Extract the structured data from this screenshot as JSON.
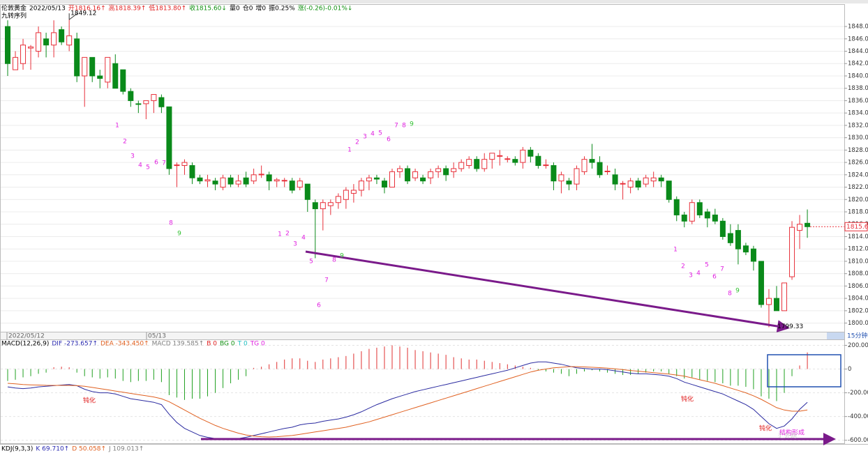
{
  "chart_data": [
    {
      "type": "candlestick",
      "header": [
        {
          "text": "伦敦黄金",
          "color": "#000000"
        },
        {
          "text": "2022/05/13",
          "color": "#000000"
        },
        {
          "text": "开1816.16↑",
          "color": "#e02020"
        },
        {
          "text": "高1818.39↑",
          "color": "#e02020"
        },
        {
          "text": "低1813.80↑",
          "color": "#e02020"
        },
        {
          "text": "收1815.60↓",
          "color": "#109010"
        },
        {
          "text": "量0",
          "color": "#000000"
        },
        {
          "text": "仓0",
          "color": "#000000"
        },
        {
          "text": "增0",
          "color": "#000000"
        },
        {
          "text": "振0.25%",
          "color": "#000000"
        },
        {
          "text": "涨(-0.26)-0.01%↓",
          "color": "#109010"
        }
      ],
      "subtitle": "九转序列",
      "open": [
        1848,
        1841,
        1842,
        1844.5,
        1844,
        1846,
        1845,
        1847.5,
        1845,
        1846,
        1840,
        1843,
        1840,
        1839,
        1842,
        1841,
        1837.5,
        1835.5,
        1835.5,
        1836,
        1836.5,
        1835,
        1825.5,
        1825.5,
        1825.5,
        1823.5,
        1823,
        1823,
        1822,
        1823.5,
        1822.5,
        1823.5,
        1823,
        1824,
        1824,
        1823,
        1823,
        1823,
        1822,
        1822.5,
        1819.5,
        1818.5,
        1819,
        1819.5,
        1820,
        1821,
        1821.5,
        1823,
        1823.5,
        1823,
        1822,
        1824.5,
        1825,
        1823.5,
        1823.5,
        1823.5,
        1824.5,
        1825,
        1824.5,
        1825,
        1825.5,
        1826.5,
        1825,
        1826.5,
        1827,
        1826.5,
        1826.5,
        1826,
        1828,
        1827,
        1825.5,
        1825.5,
        1823,
        1823,
        1822.5,
        1824.5,
        1826.5,
        1826,
        1824.5,
        1824,
        1822.5,
        1822,
        1823,
        1822.5,
        1823,
        1823.5,
        1823,
        1820,
        1817.5,
        1816.5,
        1819.5,
        1818,
        1817.5,
        1816.5,
        1814.5,
        1815,
        1812.5,
        1812,
        1810,
        1803,
        1804,
        1802,
        1807.5,
        1815,
        1816.16
      ],
      "high": [
        1849,
        1844,
        1846,
        1845,
        1848,
        1847,
        1849,
        1848,
        1849.12,
        1847,
        1843,
        1843,
        1841,
        1843,
        1843.5,
        1841,
        1838,
        1836,
        1836,
        1837,
        1837,
        1835,
        1826,
        1826.5,
        1826,
        1824,
        1824,
        1823.5,
        1824,
        1824,
        1824,
        1824.5,
        1825,
        1825.5,
        1824.5,
        1823.5,
        1823.5,
        1823.5,
        1823.5,
        1822.5,
        1820,
        1820,
        1820,
        1821,
        1822,
        1822.5,
        1823.5,
        1824,
        1824,
        1823.5,
        1825,
        1825.5,
        1825.5,
        1825,
        1824,
        1825,
        1825.5,
        1825.5,
        1826,
        1826.5,
        1827,
        1827,
        1827.5,
        1827.5,
        1828,
        1827,
        1827,
        1828.5,
        1828.5,
        1827.5,
        1826.5,
        1826,
        1824.5,
        1823.5,
        1825.5,
        1827,
        1829,
        1827,
        1825.5,
        1825,
        1823,
        1823.5,
        1823.5,
        1824,
        1824.5,
        1824,
        1823,
        1820.5,
        1818,
        1820,
        1820,
        1818.5,
        1818.5,
        1817,
        1816,
        1816,
        1813,
        1812.5,
        1810,
        1805.5,
        1806,
        1806.5,
        1816.5,
        1817.5,
        1818.39
      ],
      "low": [
        1840,
        1841,
        1841,
        1841,
        1843,
        1843,
        1843,
        1845,
        1844,
        1839,
        1835,
        1839,
        1838,
        1838,
        1838,
        1837,
        1835,
        1834,
        1833,
        1834,
        1834,
        1824,
        1822,
        1824,
        1822.5,
        1822.5,
        1822,
        1821.5,
        1821.5,
        1822,
        1822,
        1822,
        1822.5,
        1823.5,
        1821.5,
        1822,
        1822,
        1821,
        1821.5,
        1818,
        1810.5,
        1815,
        1817.5,
        1818.5,
        1818.5,
        1819.5,
        1820.5,
        1821.5,
        1822.5,
        1821,
        1822,
        1823.5,
        1822.5,
        1823,
        1822.5,
        1822.5,
        1823.5,
        1823,
        1823.5,
        1824.5,
        1825,
        1824.5,
        1824.5,
        1825,
        1825.5,
        1826,
        1825.5,
        1825,
        1826,
        1825,
        1825,
        1821.5,
        1821,
        1821.5,
        1821.5,
        1824,
        1825,
        1823.5,
        1824,
        1821.5,
        1820,
        1821,
        1821.5,
        1822,
        1822,
        1822,
        1819.5,
        1816.5,
        1815.5,
        1816,
        1817,
        1815.5,
        1816,
        1813.5,
        1812.5,
        1809.5,
        1811,
        1808.5,
        1802.5,
        1799.33,
        1802,
        1802,
        1807,
        1812,
        1813.8
      ],
      "close": [
        1842,
        1843,
        1845,
        1844.7,
        1847,
        1845,
        1847,
        1845.5,
        1846.5,
        1840,
        1843,
        1840,
        1839.6,
        1843,
        1838,
        1837.5,
        1836,
        1835.4,
        1836,
        1837,
        1835,
        1825,
        1825.6,
        1826,
        1823.5,
        1823,
        1823.2,
        1822.5,
        1823.5,
        1822.5,
        1823,
        1822.5,
        1824,
        1824.1,
        1823,
        1823.2,
        1823.1,
        1821.5,
        1823,
        1820,
        1818.5,
        1819.5,
        1819.5,
        1820.5,
        1821.5,
        1821.5,
        1823,
        1823.5,
        1823.3,
        1822,
        1824.5,
        1825,
        1823,
        1824.5,
        1823,
        1824.5,
        1825,
        1824,
        1825,
        1826,
        1826.5,
        1825,
        1826.5,
        1827.5,
        1827.1,
        1826.6,
        1826,
        1828,
        1827,
        1825.5,
        1825.6,
        1823,
        1824,
        1822.5,
        1825,
        1826.5,
        1826,
        1824,
        1824.6,
        1822.5,
        1822.6,
        1823,
        1822,
        1823.5,
        1823.5,
        1823,
        1820,
        1817.5,
        1816.5,
        1819.5,
        1817.5,
        1817,
        1816.5,
        1814,
        1813,
        1812,
        1811.5,
        1810,
        1803,
        1804,
        1802,
        1806.5,
        1815.5,
        1816,
        1815.6
      ],
      "up_color": "#e8303a",
      "down_color": "#0a8a1a",
      "ylim": [
        1798.6,
        1851.5
      ],
      "yticks": [
        {
          "value": 1800,
          "label": "1800.00"
        },
        {
          "value": 1802,
          "label": "1802.00"
        },
        {
          "value": 1804,
          "label": "1804.00"
        },
        {
          "value": 1806,
          "label": "1806.00"
        },
        {
          "value": 1808,
          "label": "1808.00"
        },
        {
          "value": 1810,
          "label": "1810.00"
        },
        {
          "value": 1812,
          "label": "1812.00"
        },
        {
          "value": 1814,
          "label": "1814.00"
        },
        {
          "value": 1816,
          "label": "1816.00"
        },
        {
          "value": 1818,
          "label": "1818.00"
        },
        {
          "value": 1820,
          "label": "1820.00"
        },
        {
          "value": 1822,
          "label": "1822.00"
        },
        {
          "value": 1824,
          "label": "1824.00"
        },
        {
          "value": 1826,
          "label": "1826.00"
        },
        {
          "value": 1828,
          "label": "1828.00"
        },
        {
          "value": 1830,
          "label": "1830.00"
        },
        {
          "value": 1832,
          "label": "1832.00"
        },
        {
          "value": 1834,
          "label": "1834.00"
        },
        {
          "value": 1836,
          "label": "1836.00"
        },
        {
          "value": 1838,
          "label": "1838.00"
        },
        {
          "value": 1840,
          "label": "1840.00"
        },
        {
          "value": 1842,
          "label": "1842.00"
        },
        {
          "value": 1844,
          "label": "1844.00"
        },
        {
          "value": 1846,
          "label": "1846.00"
        },
        {
          "value": 1848,
          "label": "1848.00"
        }
      ],
      "grid": true,
      "date_labels": [
        "2022/05/12",
        "05/13"
      ],
      "timeframe": "15分钟",
      "high_label": "1849.12",
      "low_label": "1799.33",
      "last_price_label": "1815.60",
      "td_sequence": [
        "1",
        "2",
        "3",
        "4",
        "5",
        "6",
        "7",
        "8",
        "9",
        "1",
        "2",
        "3",
        "4",
        "5",
        "6",
        "7",
        "8",
        "9",
        "1",
        "2",
        "3",
        "4",
        "5",
        "6",
        "7",
        "8",
        "9",
        "1",
        "2",
        "3",
        "4",
        "5",
        "6",
        "7",
        "8",
        "9"
      ],
      "td_colors": {
        "count": "#e020e0",
        "nine": "#30c030"
      }
    },
    {
      "type": "macd",
      "header": [
        {
          "text": "MACD(12,26,9)",
          "color": "#000000"
        },
        {
          "text": "DIF -273.657↑",
          "color": "#2a2ab0"
        },
        {
          "text": "DEA -343.450↑",
          "color": "#e06020"
        },
        {
          "text": "MACD 139.585↑",
          "color": "#808080"
        },
        {
          "text": "B 0",
          "color": "#e02020"
        },
        {
          "text": "BG 0",
          "color": "#109010"
        },
        {
          "text": "T 0",
          "color": "#20c0c0"
        },
        {
          "text": "TG 0",
          "color": "#e020e0"
        }
      ],
      "series": [
        {
          "color": "#2a2aa0",
          "values": [
            -150,
            -160,
            -165,
            -160,
            -150,
            -145,
            -140,
            -135,
            -130,
            -140,
            -170,
            -190,
            -200,
            -200,
            -210,
            -230,
            -250,
            -260,
            -270,
            -280,
            -300,
            -380,
            -450,
            -500,
            -530,
            -560,
            -575,
            -585,
            -590,
            -590,
            -585,
            -575,
            -560,
            -545,
            -530,
            -515,
            -500,
            -490,
            -470,
            -460,
            -455,
            -440,
            -430,
            -420,
            -405,
            -385,
            -360,
            -330,
            -300,
            -275,
            -250,
            -230,
            -210,
            -190,
            -175,
            -160,
            -145,
            -130,
            -115,
            -100,
            -85,
            -70,
            -55,
            -40,
            -25,
            -10,
            10,
            30,
            50,
            60,
            60,
            50,
            40,
            25,
            10,
            5,
            0,
            0,
            -5,
            -15,
            -25,
            -35,
            -40,
            -40,
            -45,
            -50,
            -60,
            -80,
            -110,
            -130,
            -150,
            -170,
            -190,
            -210,
            -240,
            -270,
            -300,
            -340,
            -400,
            -460,
            -500,
            -480,
            -420,
            -340,
            -280
          ]
        },
        {
          "color": "#e06020",
          "values": [
            -120,
            -125,
            -130,
            -133,
            -135,
            -137,
            -138,
            -138,
            -138,
            -140,
            -145,
            -155,
            -165,
            -175,
            -185,
            -195,
            -205,
            -215,
            -225,
            -235,
            -250,
            -275,
            -310,
            -345,
            -380,
            -415,
            -445,
            -475,
            -500,
            -520,
            -540,
            -555,
            -565,
            -570,
            -572,
            -570,
            -565,
            -560,
            -550,
            -540,
            -530,
            -520,
            -510,
            -500,
            -490,
            -475,
            -460,
            -445,
            -425,
            -405,
            -385,
            -365,
            -345,
            -325,
            -305,
            -285,
            -265,
            -245,
            -225,
            -205,
            -185,
            -165,
            -145,
            -125,
            -105,
            -85,
            -65,
            -45,
            -25,
            -10,
            0,
            10,
            15,
            20,
            20,
            18,
            15,
            12,
            8,
            2,
            -5,
            -12,
            -18,
            -24,
            -30,
            -36,
            -42,
            -50,
            -60,
            -75,
            -90,
            -105,
            -120,
            -140,
            -160,
            -180,
            -200,
            -225,
            -255,
            -290,
            -325,
            -345,
            -355,
            -355,
            -345
          ]
        },
        {
          "values": [
            -100,
            -90,
            -70,
            -60,
            -40,
            -30,
            15,
            20,
            15,
            -30,
            -60,
            -70,
            -80,
            -70,
            -80,
            -100,
            -110,
            -100,
            -100,
            -90,
            -110,
            -220,
            -240,
            -260,
            -250,
            -250,
            -230,
            -200,
            -160,
            -120,
            -90,
            -60,
            10,
            20,
            40,
            60,
            80,
            90,
            90,
            70,
            60,
            80,
            90,
            100,
            110,
            130,
            150,
            170,
            180,
            190,
            200,
            190,
            180,
            160,
            150,
            140,
            130,
            120,
            100,
            90,
            80,
            80,
            70,
            60,
            50,
            40,
            30,
            20,
            10,
            -10,
            -20,
            -30,
            -40,
            -60,
            -40,
            -20,
            -10,
            -20,
            -30,
            -40,
            -50,
            -50,
            -40,
            -30,
            -20,
            -20,
            -40,
            -60,
            -80,
            -70,
            -90,
            -100,
            -110,
            -120,
            -140,
            -140,
            -150,
            -170,
            -230,
            -250,
            -270,
            -200,
            -60,
            30,
            140
          ]
        }
      ],
      "up_color": "#e03030",
      "down_color": "#20a020",
      "ylim": [
        -631,
        244
      ],
      "yticks": [
        {
          "value": 200,
          "label": "200.00"
        },
        0,
        {
          "value": -200,
          "label": "-200.00"
        },
        {
          "value": -400,
          "label": "-400.00"
        },
        {
          "value": -600,
          "label": "-600.00"
        }
      ],
      "annotations": [
        "钝化",
        "钝化",
        "钝化",
        "结构形成"
      ]
    }
  ],
  "kdj_header": [
    {
      "text": "KDJ(9,3,3)",
      "color": "#000000"
    },
    {
      "text": "K 69.710↑",
      "color": "#2a2ab0"
    },
    {
      "text": "D 50.058↑",
      "color": "#e06020"
    },
    {
      "text": "J 109.013↑",
      "color": "#808080"
    }
  ],
  "watermark": "汇外网"
}
